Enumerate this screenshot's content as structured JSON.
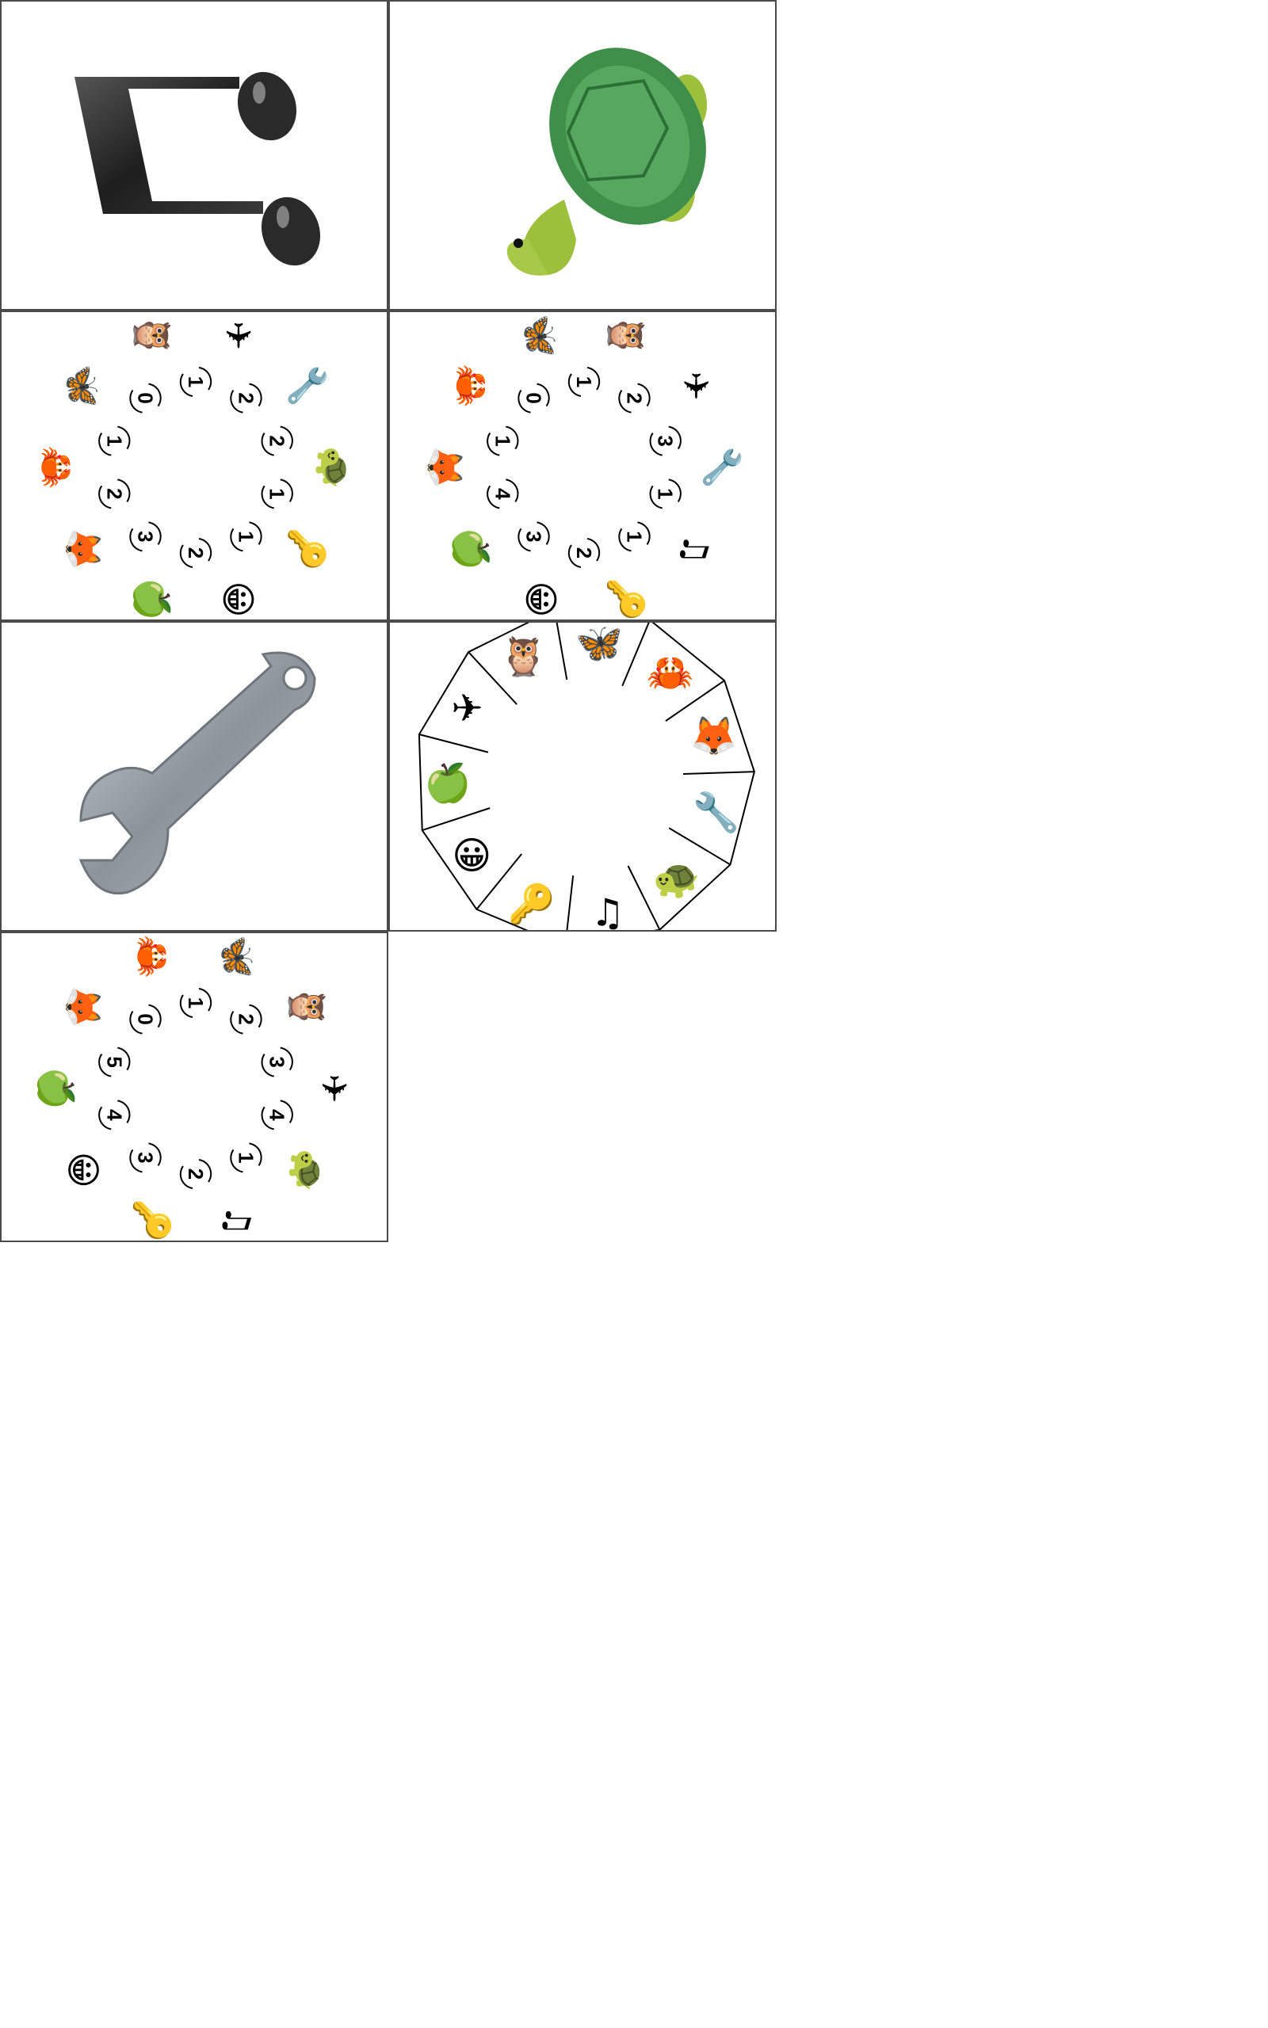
{
  "cards": [
    {
      "id": "music-note-card",
      "icon": "music-note-icon",
      "glyph": "♫"
    },
    {
      "id": "turtle-card",
      "icon": "turtle-icon",
      "glyph": "🐢"
    },
    {
      "id": "wheel-card-1",
      "wheel_icons": [
        "turtle-icon",
        "key-icon",
        "smiley-icon",
        "apple-icon",
        "fox-icon",
        "crab-icon",
        "butterfly-icon",
        "owl-icon",
        "airplane-icon",
        "wrench-icon"
      ],
      "wheel_glyphs": [
        "🐢",
        "🔑",
        "😀",
        "🍏",
        "🦊",
        "🦀",
        "🦋",
        "🦉",
        "✈",
        "🔧"
      ],
      "numbers": [
        "1",
        "1",
        "2",
        "3",
        "2",
        "1",
        "0",
        "1",
        "2",
        "2"
      ]
    },
    {
      "id": "wheel-card-2",
      "wheel_icons": [
        "wrench-icon",
        "music-note-icon",
        "key-icon",
        "smiley-icon",
        "apple-icon",
        "fox-icon",
        "crab-icon",
        "butterfly-icon",
        "owl-icon",
        "airplane-icon"
      ],
      "wheel_glyphs": [
        "🔧",
        "♫",
        "🔑",
        "😀",
        "🍏",
        "🦊",
        "🦀",
        "🦋",
        "🦉",
        "✈"
      ],
      "numbers": [
        "1",
        "1",
        "2",
        "3",
        "4",
        "1",
        "0",
        "1",
        "2",
        "3"
      ]
    },
    {
      "id": "wrench-card",
      "icon": "wrench-icon",
      "glyph": "🔧"
    },
    {
      "id": "decagon-card",
      "sector_icons": [
        "butterfly-icon",
        "crab-icon",
        "fox-icon",
        "wrench-icon",
        "turtle-icon",
        "music-note-icon",
        "key-icon",
        "smiley-icon",
        "apple-icon",
        "airplane-icon",
        "owl-icon"
      ],
      "sector_glyphs": [
        "🦋",
        "🦀",
        "🦊",
        "🔧",
        "🐢",
        "♫",
        "🔑",
        "😀",
        "🍏",
        "✈",
        "🦉"
      ]
    },
    {
      "id": "wheel-card-3",
      "wheel_icons": [
        "airplane-icon",
        "turtle-icon",
        "music-note-icon",
        "key-icon",
        "smiley-icon",
        "apple-icon",
        "fox-icon",
        "crab-icon",
        "butterfly-icon",
        "owl-icon"
      ],
      "wheel_glyphs": [
        "✈",
        "🐢",
        "♫",
        "🔑",
        "😀",
        "🍏",
        "🦊",
        "🦀",
        "🦋",
        "🦉"
      ],
      "numbers": [
        "4",
        "1",
        "2",
        "3",
        "4",
        "5",
        "0",
        "1",
        "2",
        "3"
      ]
    }
  ],
  "colors": {
    "border": "#4a4a4a",
    "turtle_shell": "#3f8f4a",
    "turtle_body": "#9cbf3c",
    "wrench": "#9aa3ad",
    "note": "#2a2a2a",
    "butterfly": "#3aa0e8",
    "fox": "#f07a1a",
    "crab": "#e0452b",
    "key": "#f2c418",
    "smiley": "#f7c21a",
    "apple": "#5cb83a",
    "owl": "#8a6a4a",
    "airplane": "#9cc8e8"
  }
}
